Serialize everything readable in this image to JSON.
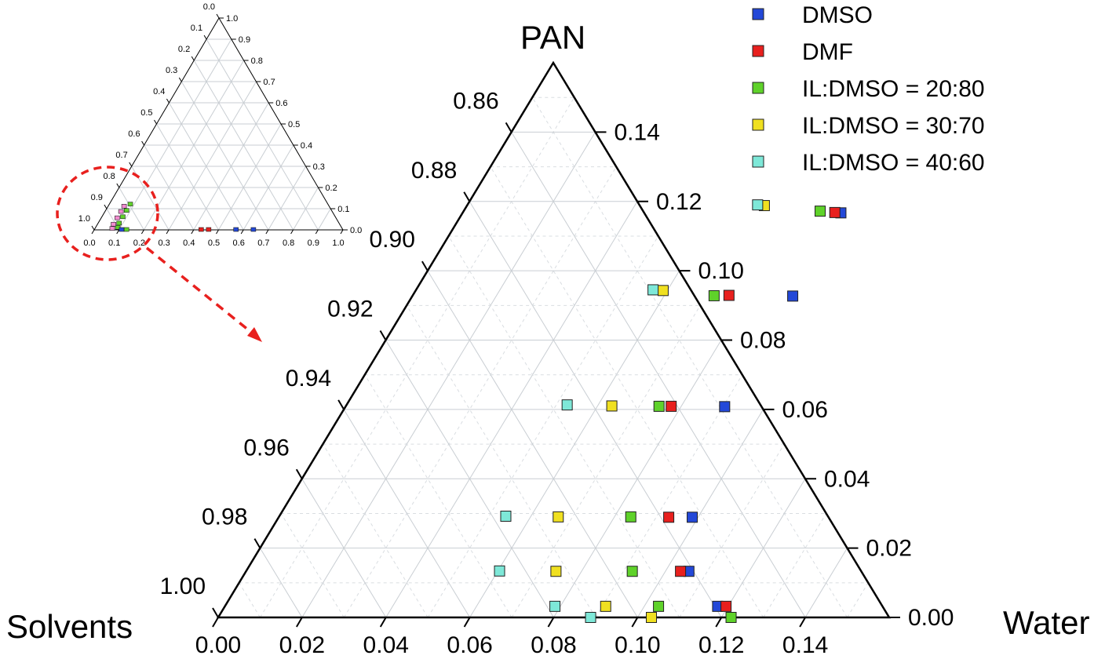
{
  "chart_data": {
    "type": "scatter",
    "subtype": "ternary",
    "axes": {
      "top": "PAN",
      "left": "Solvents",
      "right": "Water"
    },
    "colors": {
      "DMSO": "#2348d8",
      "DMF": "#e8201e",
      "IL:DMSO = 20:80": "#5fd22a",
      "IL:DMSO = 30:70": "#f0e020",
      "IL:DMSO = 40:60": "#7ee8d8",
      "inset_pink": "#f28ad0",
      "zoom_marker": "#e8201e"
    },
    "legend": [
      "DMSO",
      "DMF",
      "IL:DMSO = 20:80",
      "IL:DMSO = 30:70",
      "IL:DMSO = 40:60"
    ],
    "main": {
      "pan_range": [
        0.0,
        0.16
      ],
      "water_ticks": [
        "0.00",
        "0.02",
        "0.04",
        "0.06",
        "0.08",
        "0.10",
        "0.12",
        "0.14"
      ],
      "pan_ticks": [
        "0.00",
        "0.02",
        "0.04",
        "0.06",
        "0.08",
        "0.10",
        "0.12",
        "0.14"
      ],
      "solvent_ticks": [
        "1.00",
        "0.98",
        "0.96",
        "0.94",
        "0.92",
        "0.90",
        "0.88",
        "0.86"
      ],
      "series": [
        {
          "name": "DMSO",
          "points": [
            [
              0.0907,
              0.0927
            ],
            [
              0.0904,
              0.0608
            ],
            [
              0.0986,
              0.0289
            ],
            [
              0.1056,
              0.0133
            ],
            [
              0.1175,
              0.0032
            ],
            [
              0.0902,
              0.1167
            ]
          ]
        },
        {
          "name": "DMF",
          "points": [
            [
              0.0754,
              0.0929
            ],
            [
              0.0776,
              0.0609
            ],
            [
              0.093,
              0.0289
            ],
            [
              0.1036,
              0.0133
            ],
            [
              0.1195,
              0.0032
            ],
            [
              0.0887,
              0.1168
            ]
          ]
        },
        {
          "name": "IL:DMSO = 20:80",
          "points": [
            [
              0.0719,
              0.0928
            ],
            [
              0.0747,
              0.0609
            ],
            [
              0.0839,
              0.029
            ],
            [
              0.0921,
              0.0133
            ],
            [
              0.1034,
              0.0032
            ],
            [
              0.085,
              0.1172
            ],
            [
              0.1223,
              0.0
            ]
          ]
        },
        {
          "name": "IL:DMSO = 30:70",
          "points": [
            [
              0.059,
              0.0943
            ],
            [
              0.0634,
              0.061
            ],
            [
              0.0666,
              0.029
            ],
            [
              0.0739,
              0.0133
            ],
            [
              0.0908,
              0.0032
            ],
            [
              0.0709,
              0.1188
            ],
            [
              0.1033,
              0.0
            ]
          ]
        },
        {
          "name": "IL:DMSO = 40:60",
          "points": [
            [
              0.0565,
              0.0945
            ],
            [
              0.0526,
              0.0613
            ],
            [
              0.054,
              0.0292
            ],
            [
              0.0604,
              0.0134
            ],
            [
              0.0787,
              0.0032
            ],
            [
              0.0692,
              0.119
            ],
            [
              0.0888,
              0.0
            ]
          ]
        }
      ]
    },
    "inset": {
      "range": [
        0.0,
        1.0
      ],
      "bottom_ticks": [
        "0.0",
        "0.1",
        "0.2",
        "0.3",
        "0.4",
        "0.5",
        "0.6",
        "0.7",
        "0.8",
        "0.9",
        "1.0"
      ],
      "right_ticks": [
        "0.0",
        "0.1",
        "0.2",
        "0.3",
        "0.4",
        "0.5",
        "0.6",
        "0.7",
        "0.8",
        "0.9",
        "1.0"
      ],
      "left_ticks": [
        "1.0",
        "0.9",
        "0.8",
        "0.7",
        "0.6",
        "0.5",
        "0.4",
        "0.3",
        "0.2",
        "0.1",
        "0.0"
      ],
      "points": [
        {
          "series": "DMF",
          "w": 0.43,
          "p": 0.0
        },
        {
          "series": "DMF",
          "w": 0.46,
          "p": 0.0
        },
        {
          "series": "DMSO",
          "w": 0.57,
          "p": 0.0
        },
        {
          "series": "DMSO",
          "w": 0.64,
          "p": 0.0
        },
        {
          "series": "IL:DMSO = 20:80",
          "w": 0.13,
          "p": 0.0
        },
        {
          "series": "IL:DMSO = 20:80",
          "w": 0.085,
          "p": 0.12
        },
        {
          "series": "IL:DMSO = 20:80",
          "w": 0.085,
          "p": 0.09
        },
        {
          "series": "IL:DMSO = 20:80",
          "w": 0.085,
          "p": 0.06
        },
        {
          "series": "IL:DMSO = 20:80",
          "w": 0.085,
          "p": 0.03
        },
        {
          "series": "IL:DMSO = 20:80",
          "w": 0.09,
          "p": 0.01
        },
        {
          "series": "DMSO",
          "w": 0.11,
          "p": 0.0
        },
        {
          "series": "inset_pink",
          "w": 0.065,
          "p": 0.11
        },
        {
          "series": "inset_pink",
          "w": 0.065,
          "p": 0.085
        },
        {
          "series": "inset_pink",
          "w": 0.065,
          "p": 0.055
        },
        {
          "series": "inset_pink",
          "w": 0.065,
          "p": 0.025
        },
        {
          "series": "inset_pink",
          "w": 0.07,
          "p": 0.005
        }
      ]
    }
  }
}
